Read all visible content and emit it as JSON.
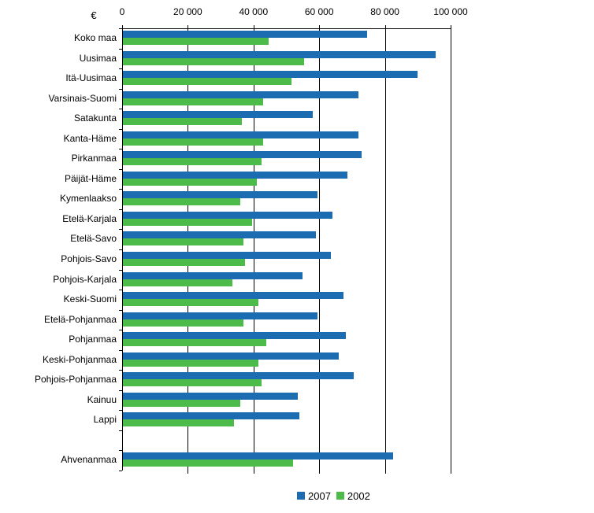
{
  "euro_symbol": "€",
  "colors": {
    "series_2007": "#1b6cb1",
    "series_2002": "#4dbb4a",
    "axis": "#000000",
    "text": "#000000",
    "background": "#ffffff"
  },
  "legend": {
    "position": "bottom",
    "items": [
      {
        "label": "2007",
        "color": "#1b6cb1"
      },
      {
        "label": "2002",
        "color": "#4dbb4a"
      }
    ]
  },
  "chart_data": {
    "type": "bar",
    "orientation": "horizontal",
    "title": "",
    "xlabel": "€",
    "ylabel": "",
    "grid": true,
    "legend_position": "bottom",
    "x_axis": {
      "min": 0,
      "max": 100000,
      "tick_values": [
        0,
        20000,
        40000,
        60000,
        80000,
        100000
      ],
      "tick_labels": [
        "0",
        "20 000",
        "40 000",
        "60 000",
        "80 000",
        "100 000"
      ]
    },
    "categories": [
      "Koko maa",
      "Uusimaa",
      "Itä-Uusimaa",
      "Varsinais-Suomi",
      "Satakunta",
      "Kanta-Häme",
      "Pirkanmaa",
      "Päijät-Häme",
      "Kymenlaakso",
      "Etelä-Karjala",
      "Etelä-Savo",
      "Pohjois-Savo",
      "Pohjois-Karjala",
      "Keski-Suomi",
      "Etelä-Pohjanmaa",
      "Pohjanmaa",
      "Keski-Pohjanmaa",
      "Pohjois-Pohjanmaa",
      "Kainuu",
      "Lappi",
      "Ahvenanmaa"
    ],
    "gap_before_category": "Ahvenanmaa",
    "series": [
      {
        "name": "2007",
        "color": "#1b6cb1",
        "values": [
          74500,
          95500,
          90000,
          72000,
          58000,
          72000,
          73000,
          68500,
          59500,
          64000,
          59000,
          63500,
          55000,
          67500,
          59500,
          68000,
          66000,
          70500,
          53500,
          54000,
          82500
        ]
      },
      {
        "name": "2002",
        "color": "#4dbb4a",
        "values": [
          44500,
          55500,
          51500,
          43000,
          36500,
          43000,
          42500,
          41000,
          36000,
          39500,
          37000,
          37500,
          33500,
          41500,
          37000,
          44000,
          41500,
          42500,
          36000,
          34000,
          52000
        ]
      }
    ]
  }
}
